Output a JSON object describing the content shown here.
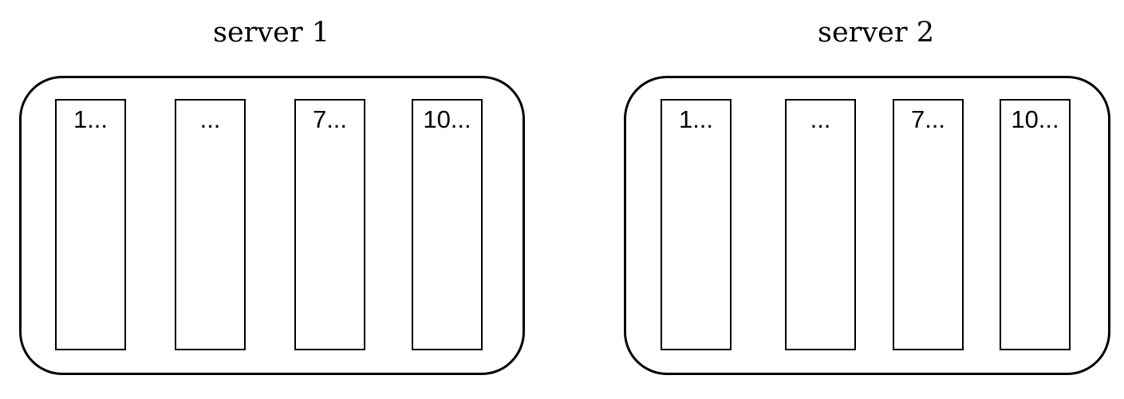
{
  "servers": [
    {
      "title": "server 1",
      "slots": [
        {
          "label": "1..."
        },
        {
          "label": "..."
        },
        {
          "label": "7..."
        },
        {
          "label": "10..."
        }
      ]
    },
    {
      "title": "server 2",
      "slots": [
        {
          "label": "1..."
        },
        {
          "label": "..."
        },
        {
          "label": "7..."
        },
        {
          "label": "10..."
        }
      ]
    }
  ],
  "colors": {
    "stroke": "#000000",
    "background": "#ffffff"
  }
}
